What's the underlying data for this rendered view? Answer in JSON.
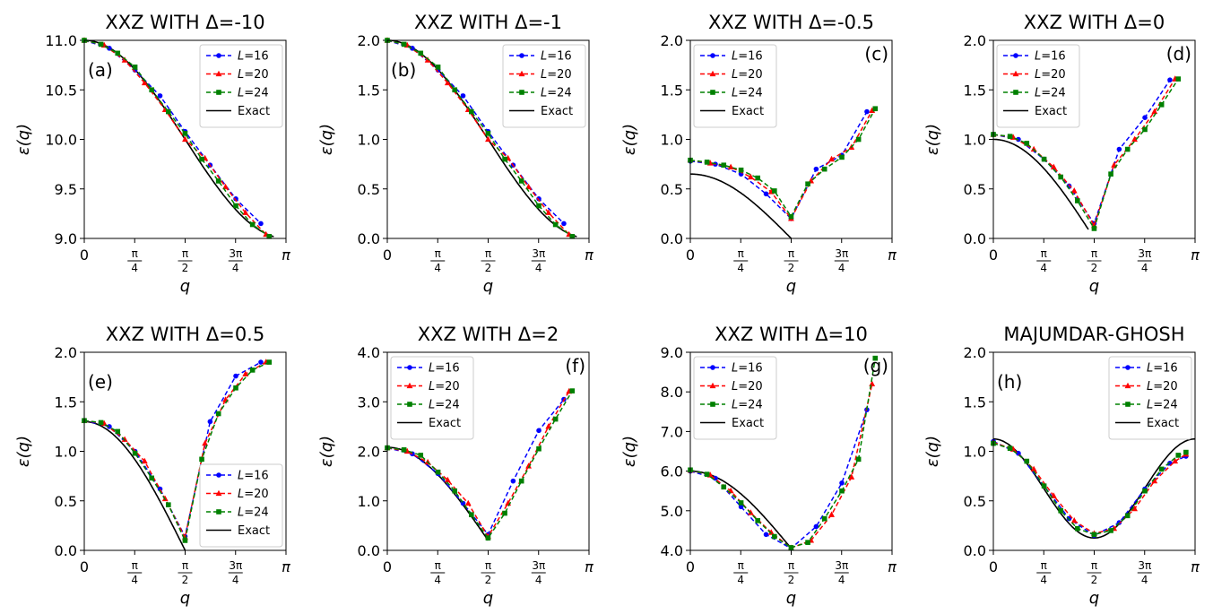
{
  "chart_data": [
    {
      "type": "line",
      "title": "XXZ WITH Δ=-10",
      "panel_label": "(a)",
      "xlabel": "q",
      "ylabel": "ε(q)",
      "xlim": [
        0,
        3.14159
      ],
      "ylim": [
        9.0,
        11.0
      ],
      "yticks": [
        "9.0",
        "9.5",
        "10.0",
        "10.5",
        "11.0"
      ],
      "legend": "top-right",
      "exact": {
        "f": "cos",
        "A": 10,
        "B": 1,
        "qmin": 0,
        "qmax": 2.95
      },
      "series": [
        {
          "name": "L=16",
          "color": "#0000ff",
          "marker": "circle",
          "x": [
            0,
            0.39,
            0.79,
            1.18,
            1.57,
            1.96,
            2.36,
            2.75
          ],
          "y": [
            11.0,
            10.92,
            10.7,
            10.44,
            10.08,
            9.74,
            9.4,
            9.15
          ]
        },
        {
          "name": "L=20",
          "color": "#ff0000",
          "marker": "triangle",
          "x": [
            0,
            0.31,
            0.63,
            0.94,
            1.26,
            1.57,
            1.88,
            2.2,
            2.51,
            2.83
          ],
          "y": [
            11.0,
            10.95,
            10.8,
            10.57,
            10.3,
            10.0,
            9.81,
            9.52,
            9.26,
            9.04
          ]
        },
        {
          "name": "L=24",
          "color": "#008000",
          "marker": "square",
          "x": [
            0,
            0.26,
            0.52,
            0.79,
            1.05,
            1.31,
            1.57,
            1.83,
            2.09,
            2.36,
            2.62,
            2.88
          ],
          "y": [
            11.0,
            10.96,
            10.87,
            10.73,
            10.5,
            10.28,
            10.06,
            9.8,
            9.58,
            9.33,
            9.14,
            9.02
          ]
        }
      ]
    },
    {
      "type": "line",
      "title": "XXZ WITH Δ=-1",
      "panel_label": "(b)",
      "xlabel": "q",
      "ylabel": "ε(q)",
      "xlim": [
        0,
        3.14159
      ],
      "ylim": [
        0.0,
        2.0
      ],
      "yticks": [
        "0.0",
        "0.5",
        "1.0",
        "1.5",
        "2.0"
      ],
      "legend": "top-right",
      "exact": {
        "f": "cos",
        "A": 1,
        "B": 1,
        "qmin": 0,
        "qmax": 2.95
      },
      "series": [
        {
          "name": "L=16",
          "color": "#0000ff",
          "marker": "circle",
          "x": [
            0,
            0.39,
            0.79,
            1.18,
            1.57,
            1.96,
            2.36,
            2.75
          ],
          "y": [
            2.0,
            1.92,
            1.7,
            1.44,
            1.08,
            0.74,
            0.4,
            0.15
          ]
        },
        {
          "name": "L=20",
          "color": "#ff0000",
          "marker": "triangle",
          "x": [
            0,
            0.31,
            0.63,
            0.94,
            1.26,
            1.57,
            1.88,
            2.2,
            2.51,
            2.83
          ],
          "y": [
            2.0,
            1.95,
            1.8,
            1.57,
            1.3,
            1.0,
            0.81,
            0.52,
            0.26,
            0.04
          ]
        },
        {
          "name": "L=24",
          "color": "#008000",
          "marker": "square",
          "x": [
            0,
            0.26,
            0.52,
            0.79,
            1.05,
            1.31,
            1.57,
            1.83,
            2.09,
            2.36,
            2.62,
            2.88
          ],
          "y": [
            2.0,
            1.96,
            1.87,
            1.73,
            1.5,
            1.28,
            1.06,
            0.8,
            0.58,
            0.33,
            0.14,
            0.02
          ]
        }
      ]
    },
    {
      "type": "line",
      "title": "XXZ WITH Δ=-0.5",
      "panel_label": "(c)",
      "xlabel": "q",
      "ylabel": "ε(q)",
      "xlim": [
        0,
        3.14159
      ],
      "ylim": [
        0.0,
        2.0
      ],
      "yticks": [
        "0.0",
        "0.5",
        "1.0",
        "1.5",
        "2.0"
      ],
      "legend": "top-left",
      "exact": {
        "f": "cos",
        "A": 0,
        "B": 0.65,
        "qmin": 0,
        "qmax": 1.5708
      },
      "series": [
        {
          "name": "L=16",
          "color": "#0000ff",
          "marker": "circle",
          "x": [
            0,
            0.39,
            0.79,
            1.18,
            1.57,
            1.96,
            2.36,
            2.75
          ],
          "y": [
            0.78,
            0.75,
            0.65,
            0.45,
            0.2,
            0.7,
            0.84,
            1.28
          ]
        },
        {
          "name": "L=20",
          "color": "#ff0000",
          "marker": "triangle",
          "x": [
            0,
            0.31,
            0.63,
            0.94,
            1.26,
            1.57,
            1.88,
            2.2,
            2.51,
            2.83
          ],
          "y": [
            0.79,
            0.76,
            0.72,
            0.62,
            0.47,
            0.2,
            0.58,
            0.8,
            0.92,
            1.29
          ]
        },
        {
          "name": "L=24",
          "color": "#008000",
          "marker": "square",
          "x": [
            0,
            0.26,
            0.52,
            0.79,
            1.05,
            1.31,
            1.57,
            1.83,
            2.09,
            2.36,
            2.62,
            2.88
          ],
          "y": [
            0.79,
            0.77,
            0.74,
            0.69,
            0.61,
            0.48,
            0.22,
            0.55,
            0.7,
            0.82,
            1.0,
            1.31
          ]
        }
      ]
    },
    {
      "type": "line",
      "title": "XXZ WITH Δ=0",
      "panel_label": "(d)",
      "xlabel": "q",
      "ylabel": "ε(q)",
      "xlim": [
        0,
        3.14159
      ],
      "ylim": [
        0.0,
        2.0
      ],
      "yticks": [
        "0.0",
        "0.5",
        "1.0",
        "1.5",
        "2.0"
      ],
      "legend": "top-left",
      "exact": {
        "f": "cos",
        "A": 0,
        "B": 1,
        "qmin": 0,
        "qmax": 1.48
      },
      "series": [
        {
          "name": "L=16",
          "color": "#0000ff",
          "marker": "circle",
          "x": [
            0,
            0.39,
            0.79,
            1.18,
            1.57,
            1.96,
            2.36,
            2.75
          ],
          "y": [
            1.05,
            1.0,
            0.8,
            0.53,
            0.15,
            0.9,
            1.22,
            1.6
          ]
        },
        {
          "name": "L=20",
          "color": "#ff0000",
          "marker": "triangle",
          "x": [
            0,
            0.31,
            0.63,
            0.94,
            1.26,
            1.57,
            1.88,
            2.2,
            2.51,
            2.83
          ],
          "y": [
            1.05,
            1.02,
            0.9,
            0.72,
            0.48,
            0.13,
            0.74,
            1.0,
            1.28,
            1.61
          ]
        },
        {
          "name": "L=24",
          "color": "#008000",
          "marker": "square",
          "x": [
            0,
            0.26,
            0.52,
            0.79,
            1.05,
            1.31,
            1.57,
            1.83,
            2.09,
            2.36,
            2.62,
            2.88
          ],
          "y": [
            1.05,
            1.03,
            0.96,
            0.8,
            0.62,
            0.38,
            0.1,
            0.65,
            0.9,
            1.1,
            1.35,
            1.61
          ]
        }
      ]
    },
    {
      "type": "line",
      "title": "XXZ WITH Δ=0.5",
      "panel_label": "(e)",
      "xlabel": "q",
      "ylabel": "ε(q)",
      "xlim": [
        0,
        3.14159
      ],
      "ylim": [
        0.0,
        2.0
      ],
      "yticks": [
        "0.0",
        "0.5",
        "1.0",
        "1.5",
        "2.0"
      ],
      "legend": "bottom-right",
      "exact": {
        "f": "cos",
        "A": 0,
        "B": 1.3,
        "qmin": 0,
        "qmax": 1.5708
      },
      "series": [
        {
          "name": "L=16",
          "color": "#0000ff",
          "marker": "circle",
          "x": [
            0,
            0.39,
            0.79,
            1.18,
            1.57,
            1.96,
            2.36,
            2.75
          ],
          "y": [
            1.31,
            1.25,
            1.0,
            0.62,
            0.14,
            1.3,
            1.76,
            1.9
          ]
        },
        {
          "name": "L=20",
          "color": "#ff0000",
          "marker": "triangle",
          "x": [
            0,
            0.31,
            0.63,
            0.94,
            1.26,
            1.57,
            1.88,
            2.2,
            2.51,
            2.83
          ],
          "y": [
            1.31,
            1.28,
            1.12,
            0.9,
            0.52,
            0.13,
            1.08,
            1.52,
            1.78,
            1.9
          ]
        },
        {
          "name": "L=24",
          "color": "#008000",
          "marker": "square",
          "x": [
            0,
            0.26,
            0.52,
            0.79,
            1.05,
            1.31,
            1.57,
            1.83,
            2.09,
            2.36,
            2.62,
            2.88
          ],
          "y": [
            1.31,
            1.29,
            1.2,
            0.98,
            0.73,
            0.46,
            0.1,
            0.92,
            1.38,
            1.64,
            1.82,
            1.9
          ]
        }
      ]
    },
    {
      "type": "line",
      "title": "XXZ WITH Δ=2",
      "panel_label": "(f)",
      "xlabel": "q",
      "ylabel": "ε(q)",
      "xlim": [
        0,
        3.14159
      ],
      "ylim": [
        0.0,
        4.0
      ],
      "yticks": [
        "0.0",
        "1.0",
        "2.0",
        "3.0",
        "4.0"
      ],
      "legend": "top-left",
      "exact": {
        "f": "cos",
        "A": 0.2,
        "B": 1.88,
        "qmin": 0,
        "qmax": 1.5708
      },
      "series": [
        {
          "name": "L=16",
          "color": "#0000ff",
          "marker": "circle",
          "x": [
            0,
            0.39,
            0.79,
            1.18,
            1.57,
            1.96,
            2.36,
            2.75
          ],
          "y": [
            2.07,
            1.95,
            1.55,
            0.95,
            0.32,
            1.4,
            2.42,
            3.05
          ]
        },
        {
          "name": "L=20",
          "color": "#ff0000",
          "marker": "triangle",
          "x": [
            0,
            0.31,
            0.63,
            0.94,
            1.26,
            1.57,
            1.88,
            2.2,
            2.51,
            2.83
          ],
          "y": [
            2.07,
            2.0,
            1.78,
            1.42,
            0.95,
            0.28,
            0.95,
            1.7,
            2.5,
            3.21
          ]
        },
        {
          "name": "L=24",
          "color": "#008000",
          "marker": "square",
          "x": [
            0,
            0.26,
            0.52,
            0.79,
            1.05,
            1.31,
            1.57,
            1.83,
            2.09,
            2.36,
            2.62,
            2.88
          ],
          "y": [
            2.07,
            2.03,
            1.92,
            1.58,
            1.2,
            0.72,
            0.25,
            0.75,
            1.4,
            2.05,
            2.65,
            3.22
          ]
        }
      ]
    },
    {
      "type": "line",
      "title": "XXZ WITH Δ=10",
      "panel_label": "(g)",
      "xlabel": "q",
      "ylabel": "ε(q)",
      "xlim": [
        0,
        3.14159
      ],
      "ylim": [
        4.0,
        9.0
      ],
      "yticks": [
        "4.0",
        "5.0",
        "6.0",
        "7.0",
        "8.0",
        "9.0"
      ],
      "legend": "top-left",
      "exact": {
        "f": "cos",
        "A": 4.05,
        "B": 1.95,
        "qmin": 0,
        "qmax": 1.5708
      },
      "series": [
        {
          "name": "L=16",
          "color": "#0000ff",
          "marker": "circle",
          "x": [
            0,
            0.39,
            0.79,
            1.18,
            1.57,
            1.96,
            2.36,
            2.75
          ],
          "y": [
            6.0,
            5.82,
            5.1,
            4.4,
            4.05,
            4.6,
            5.7,
            7.55
          ]
        },
        {
          "name": "L=20",
          "color": "#ff0000",
          "marker": "triangle",
          "x": [
            0,
            0.31,
            0.63,
            0.94,
            1.26,
            1.57,
            1.88,
            2.2,
            2.51,
            2.83
          ],
          "y": [
            6.02,
            5.9,
            5.5,
            4.95,
            4.45,
            4.06,
            4.25,
            4.9,
            5.85,
            8.2
          ]
        },
        {
          "name": "L=24",
          "color": "#008000",
          "marker": "square",
          "x": [
            0,
            0.26,
            0.52,
            0.79,
            1.05,
            1.31,
            1.57,
            1.83,
            2.09,
            2.36,
            2.62,
            2.88
          ],
          "y": [
            6.03,
            5.92,
            5.6,
            5.2,
            4.75,
            4.35,
            4.07,
            4.2,
            4.8,
            5.5,
            6.3,
            8.85
          ]
        }
      ]
    },
    {
      "type": "line",
      "title": "MAJUMDAR-GHOSH",
      "panel_label": "(h)",
      "xlabel": "q",
      "ylabel": "ε(q)",
      "xlim": [
        0,
        3.14159
      ],
      "ylim": [
        0.0,
        2.0
      ],
      "yticks": [
        "0.0",
        "0.5",
        "1.0",
        "1.5",
        "2.0"
      ],
      "legend": "top-right",
      "exact": {
        "f": "mg",
        "A": 0.125,
        "B": 1.0,
        "qmin": 0,
        "qmax": 3.14159
      },
      "series": [
        {
          "name": "L=16",
          "color": "#0000ff",
          "marker": "circle",
          "x": [
            0,
            0.39,
            0.79,
            1.18,
            1.57,
            1.96,
            2.36,
            2.75,
            3.0
          ],
          "y": [
            1.1,
            0.98,
            0.65,
            0.32,
            0.15,
            0.28,
            0.62,
            0.88,
            0.95
          ]
        },
        {
          "name": "L=20",
          "color": "#ff0000",
          "marker": "triangle",
          "x": [
            0,
            0.31,
            0.63,
            0.94,
            1.26,
            1.57,
            1.88,
            2.2,
            2.51,
            2.83,
            3.0
          ],
          "y": [
            1.09,
            1.02,
            0.82,
            0.55,
            0.3,
            0.17,
            0.22,
            0.42,
            0.7,
            0.9,
            0.97
          ]
        },
        {
          "name": "L=24",
          "color": "#008000",
          "marker": "square",
          "x": [
            0,
            0.26,
            0.52,
            0.79,
            1.05,
            1.31,
            1.57,
            1.83,
            2.09,
            2.36,
            2.62,
            2.88,
            3.0
          ],
          "y": [
            1.08,
            1.03,
            0.9,
            0.65,
            0.4,
            0.22,
            0.16,
            0.2,
            0.35,
            0.6,
            0.82,
            0.96,
            0.99
          ]
        }
      ]
    }
  ],
  "legend_exact_label": "Exact",
  "xtick_labels": [
    "0",
    "π/4",
    "π/2",
    "3π/4",
    "π"
  ]
}
